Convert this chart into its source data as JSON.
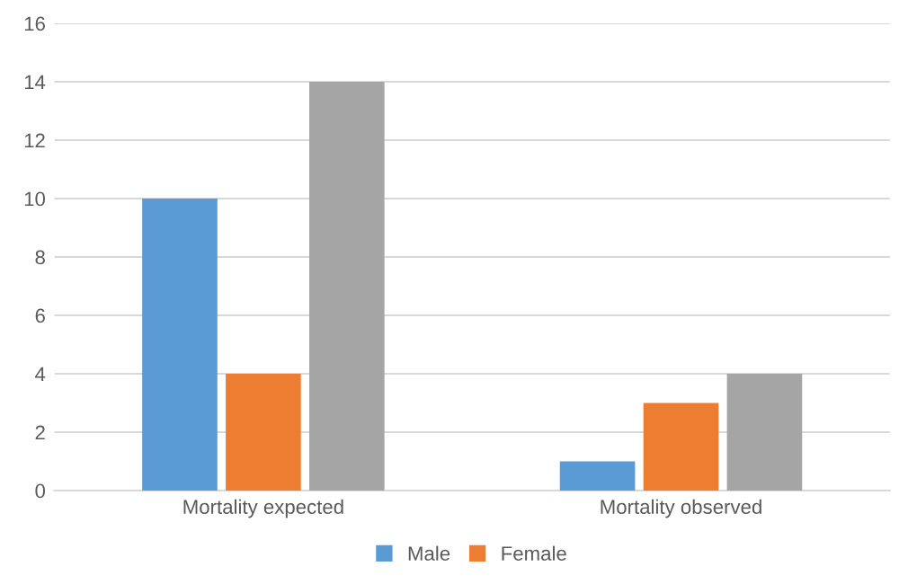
{
  "chart_data": {
    "type": "bar",
    "categories": [
      "Mortality expected",
      "Mortality observed"
    ],
    "series": [
      {
        "name": "Male",
        "color": "#5b9bd5",
        "values": [
          10,
          1
        ]
      },
      {
        "name": "Female",
        "color": "#ed7d31",
        "values": [
          4,
          3
        ]
      },
      {
        "color": "#a5a5a5",
        "values": [
          14,
          4
        ]
      }
    ],
    "ylim": [
      0,
      16
    ],
    "yticks": [
      0,
      2,
      4,
      6,
      8,
      10,
      12,
      14,
      16
    ],
    "grid": "y",
    "legend": "bottom"
  }
}
